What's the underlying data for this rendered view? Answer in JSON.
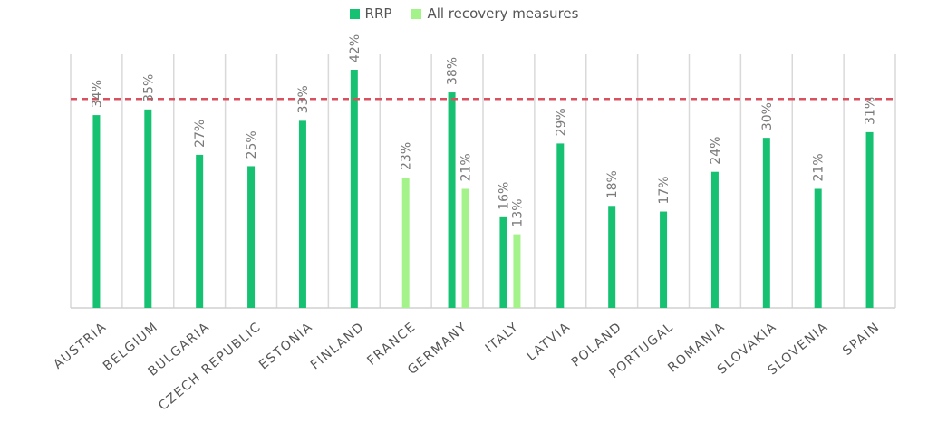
{
  "legend": {
    "rrp": {
      "label": "RRP",
      "color": "#16c172"
    },
    "all": {
      "label": "All recovery measures",
      "color": "#a3f28a"
    }
  },
  "reference_line": {
    "color": "#d9505e"
  },
  "chart_data": {
    "type": "bar",
    "title": "",
    "xlabel": "",
    "ylabel": "",
    "ylim": [
      0,
      45
    ],
    "grid": "vertical",
    "legend_position": "top",
    "reference_line_value": 37,
    "categories": [
      "AUSTRIA",
      "BELGIUM",
      "BULGARIA",
      "CZECH REPUBLIC",
      "ESTONIA",
      "FINLAND",
      "FRANCE",
      "GERMANY",
      "ITALY",
      "LATVIA",
      "POLAND",
      "PORTUGAL",
      "ROMANIA",
      "SLOVAKIA",
      "SLOVENIA",
      "SPAIN"
    ],
    "series": [
      {
        "name": "RRP",
        "color": "#16c172",
        "values": [
          34,
          35,
          27,
          25,
          33,
          42,
          null,
          38,
          16,
          29,
          18,
          17,
          24,
          30,
          21,
          31
        ],
        "labels": [
          "34%",
          "35%",
          "27%",
          "25%",
          "33%",
          "42%",
          null,
          "38%",
          "16%",
          "29%",
          "18%",
          "17%",
          "24%",
          "30%",
          "21%",
          "31%"
        ]
      },
      {
        "name": "All recovery measures",
        "color": "#a3f28a",
        "values": [
          null,
          null,
          null,
          null,
          null,
          null,
          23,
          21,
          13,
          null,
          null,
          null,
          null,
          null,
          null,
          null
        ],
        "labels": [
          null,
          null,
          null,
          null,
          null,
          null,
          "23%",
          "21%",
          "13%",
          null,
          null,
          null,
          null,
          null,
          null,
          null
        ]
      }
    ]
  }
}
